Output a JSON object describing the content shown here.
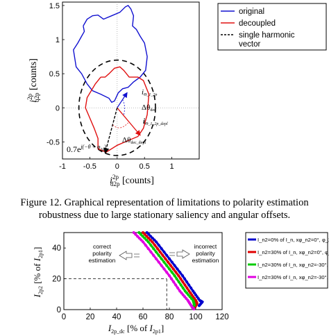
{
  "figure12": {
    "caption_line1": "Figure 12.  Graphical representation of limitations to polarity estimation",
    "caption_line2": "robustness due to large stationary saliency and angular offsets.",
    "ylabel_sym": "i",
    "ylabel_sup": "2p",
    "ylabel_sub": "q2p",
    "ylabel_unit": " [counts]",
    "xlabel_sym": "i",
    "xlabel_sup": "2p",
    "xlabel_sub": "d2p",
    "xlabel_unit": " [counts]",
    "ann_pos_vec": "i",
    "ann_pos_vec_sub": "Θ_1_2p",
    "ann_dtheta": "Δθ",
    "ann_dtheta_sub": "dec",
    "ann_dec_vec": "i",
    "ann_dec_vec_sub": "Θ_1_2p_depl",
    "ann_dtheta2": "Δθ",
    "ann_dtheta2_sub": "dec_depl",
    "ann_bottom": "0.7e",
    "ann_bottom_exp": "j(−θ + φ",
    "ann_bottom_exp_sub": "2p",
    "ann_bottom_exp_end": ")",
    "chart_data": {
      "type": "line",
      "xlim": [
        -1,
        1.5
      ],
      "ylim": [
        -0.75,
        1.55
      ],
      "xticks": [
        -1,
        -0.5,
        0,
        0.5,
        1
      ],
      "yticks": [
        -0.5,
        0,
        0.5,
        1,
        1.5
      ],
      "xtick_labels": [
        "-1",
        "-0.5",
        "0",
        "0.5",
        "1"
      ],
      "ytick_labels": [
        "-0.5",
        "0",
        "0.5",
        "1",
        "1.5"
      ],
      "legend": [
        "original",
        "decoupled",
        "single harmonic vector"
      ],
      "legend_placement": "top-right",
      "series": [
        {
          "name": "original",
          "color": "#1010d0",
          "x": [
            -0.62,
            -0.55,
            -0.45,
            -0.35,
            -0.25,
            -0.1,
            0.05,
            0.15,
            0.2,
            0.25,
            0.3,
            0.28,
            0.35,
            0.42,
            0.5,
            0.55,
            0.52,
            0.42,
            0.3,
            0.2,
            0.1,
            0.02,
            -0.05,
            -0.1,
            -0.15,
            -0.3,
            -0.45,
            -0.55,
            -0.65,
            -0.75,
            -0.8,
            -0.72,
            -0.65,
            -0.6,
            -0.62
          ],
          "y": [
            1.2,
            1.3,
            1.35,
            1.36,
            1.3,
            1.35,
            1.4,
            1.48,
            1.5,
            1.45,
            1.35,
            1.2,
            1.15,
            1.05,
            0.95,
            0.75,
            0.55,
            0.45,
            0.38,
            0.3,
            0.28,
            0.22,
            0.1,
            0.08,
            0.14,
            0.2,
            0.25,
            0.35,
            0.5,
            0.6,
            0.85,
            0.95,
            1.05,
            1.12,
            1.2
          ]
        },
        {
          "name": "decoupled",
          "color": "#e01010",
          "x": [
            -0.3,
            -0.4,
            -0.55,
            -0.58,
            -0.5,
            -0.42,
            -0.35,
            -0.35,
            -0.2,
            0.0,
            0.2,
            0.38,
            0.48,
            0.55,
            0.58,
            0.48,
            0.38,
            0.22,
            0.12,
            0.05,
            -0.05,
            -0.15,
            -0.22,
            -0.3
          ],
          "y": [
            0.45,
            0.35,
            0.15,
            0.0,
            -0.15,
            -0.3,
            -0.45,
            -0.6,
            -0.65,
            -0.55,
            -0.48,
            -0.42,
            -0.3,
            -0.1,
            0.2,
            0.4,
            0.45,
            0.45,
            0.55,
            0.6,
            0.58,
            0.5,
            0.45,
            0.45
          ]
        }
      ],
      "circle": {
        "center": [
          0,
          0
        ],
        "radius": 0.7,
        "name": "single harmonic vector"
      }
    }
  },
  "figure13": {
    "ylabel_sym": "I",
    "ylabel_sub": "2p2",
    "ylabel_mid": " [% of ",
    "ylabel_sym2": "I",
    "ylabel_sub2": "2p1",
    "ylabel_end": "]",
    "xlabel_sym": "I",
    "xlabel_sub": "2p_dc",
    "xlabel_mid": " [% of ",
    "xlabel_sym2": "I",
    "xlabel_sub2": "2p1",
    "xlabel_end": "]",
    "ann_correct": [
      "correct",
      "polarity",
      "estimation"
    ],
    "ann_incorrect": [
      "incorrect",
      "polarity",
      "estimation"
    ],
    "chart_data": {
      "type": "line",
      "xlim": [
        0,
        120
      ],
      "ylim": [
        0,
        50
      ],
      "xticks": [
        0,
        20,
        40,
        60,
        80,
        100,
        120
      ],
      "yticks": [
        0,
        20,
        40
      ],
      "xtick_labels": [
        "0",
        "20",
        "40",
        "60",
        "80",
        "100",
        "120"
      ],
      "ytick_labels": [
        "0",
        "20",
        "40"
      ],
      "guide": {
        "x": 78,
        "y": 20
      },
      "legend": [
        "I_n2=0% of I_n, xφ_n2=0°, φ_2p2=0°",
        "I_n2=30% of I_n, xφ_n2=0°, φ_2p2=0°",
        "I_n2=30% of I_n, xφ_n2=-30°, φ_2p2=0°",
        "I_n2=30% of I_n, xφ_n2=-30°, φ_2p2=10°"
      ],
      "legend_placement": "right",
      "series": [
        {
          "name": "I_n2=0% of I_n, xφ_n2=0°, φ_2p2=0°",
          "color": "#0000cc",
          "x": [
            63,
            70,
            80,
            90,
            98,
            103,
            105,
            102
          ],
          "y": [
            50,
            44,
            33,
            22,
            12,
            6,
            5,
            2
          ]
        },
        {
          "name": "I_n2=30% of I_n, xφ_n2=0°, φ_2p2=0°",
          "color": "#e00000",
          "x": [
            60,
            67,
            77,
            87,
            95,
            100,
            101,
            99
          ],
          "y": [
            50,
            44,
            33,
            22,
            12,
            6,
            4,
            1
          ]
        },
        {
          "name": "I_n2=30% of I_n, xφ_n2=-30°, φ_2p2=0°",
          "color": "#00cc00",
          "x": [
            57,
            64,
            74,
            84,
            92,
            98,
            99,
            97
          ],
          "y": [
            50,
            44,
            33,
            22,
            12,
            6,
            3,
            1
          ]
        },
        {
          "name": "I_n2=30% of I_n, xφ_n2=-30°, φ_2p2=10°",
          "color": "#e000e0",
          "x": [
            53,
            60,
            70,
            80,
            88,
            94,
            97,
            99
          ],
          "y": [
            50,
            44,
            33,
            22,
            12,
            6,
            2,
            0
          ]
        }
      ]
    }
  }
}
